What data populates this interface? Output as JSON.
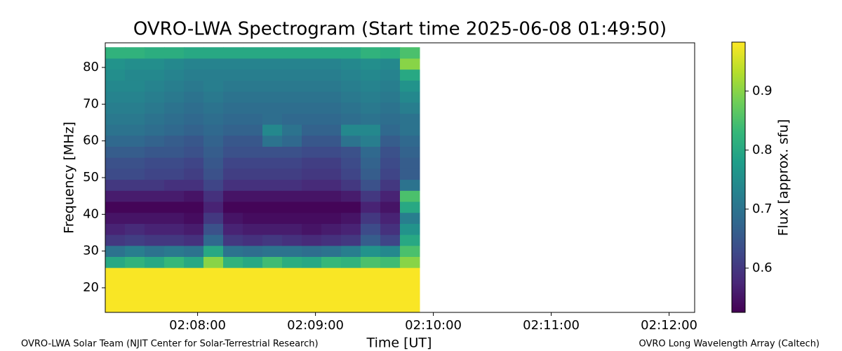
{
  "chart_data": {
    "type": "heatmap",
    "title": "OVRO-LWA Spectrogram (Start time 2025-06-08 01:49:50)",
    "x_label": "Time [UT]",
    "y_label": "Frequency [MHz]",
    "colorbar_label": "Flux [approx. sfu]",
    "footer_left": "OVRO-LWA Solar Team (NJIT Center for Solar-Terrestrial Research)",
    "footer_right": "OVRO Long Wavelength Array (Caltech)",
    "colormap": "viridis",
    "xlim": [
      "02:07:13",
      "02:12:13"
    ],
    "xticks": [
      "02:08:00",
      "02:09:00",
      "02:10:00",
      "02:11:00",
      "02:12:00"
    ],
    "ylim": [
      13.3,
      86.7
    ],
    "yticks": [
      20,
      30,
      40,
      50,
      60,
      70,
      80
    ],
    "clim": [
      0.525,
      0.983
    ],
    "cticks": [
      0.6,
      0.7,
      0.8,
      0.9
    ],
    "x": [
      "02:07:18",
      "02:07:28",
      "02:07:38",
      "02:07:48",
      "02:07:58",
      "02:08:08",
      "02:08:18",
      "02:08:28",
      "02:08:38",
      "02:08:48",
      "02:08:58",
      "02:09:08",
      "02:09:18",
      "02:09:28",
      "02:09:38",
      "02:09:48"
    ],
    "y": [
      15,
      18,
      21,
      24,
      27,
      30,
      33,
      36,
      39,
      42,
      45,
      48,
      51,
      54,
      57,
      60,
      63,
      66,
      69,
      72,
      75,
      78,
      81,
      84
    ],
    "z": [
      [
        0.98,
        0.98,
        0.98,
        0.98,
        0.98,
        0.98,
        0.98,
        0.98,
        0.98,
        0.98,
        0.98,
        0.98,
        0.98,
        0.98,
        0.98,
        0.98
      ],
      [
        0.98,
        0.98,
        0.98,
        0.98,
        0.98,
        0.98,
        0.98,
        0.98,
        0.98,
        0.98,
        0.98,
        0.98,
        0.98,
        0.98,
        0.98,
        0.98
      ],
      [
        0.98,
        0.98,
        0.98,
        0.98,
        0.98,
        0.98,
        0.98,
        0.98,
        0.98,
        0.98,
        0.98,
        0.98,
        0.98,
        0.98,
        0.98,
        0.98
      ],
      [
        0.98,
        0.98,
        0.98,
        0.98,
        0.98,
        0.98,
        0.98,
        0.98,
        0.98,
        0.98,
        0.98,
        0.98,
        0.98,
        0.98,
        0.98,
        0.98
      ],
      [
        0.8,
        0.82,
        0.8,
        0.83,
        0.8,
        0.9,
        0.82,
        0.8,
        0.84,
        0.81,
        0.8,
        0.83,
        0.82,
        0.85,
        0.84,
        0.9
      ],
      [
        0.7,
        0.72,
        0.7,
        0.71,
        0.7,
        0.8,
        0.7,
        0.69,
        0.7,
        0.7,
        0.69,
        0.7,
        0.72,
        0.76,
        0.74,
        0.85
      ],
      [
        0.6,
        0.61,
        0.6,
        0.6,
        0.59,
        0.68,
        0.6,
        0.59,
        0.6,
        0.59,
        0.58,
        0.59,
        0.6,
        0.66,
        0.62,
        0.8
      ],
      [
        0.57,
        0.58,
        0.57,
        0.57,
        0.56,
        0.64,
        0.57,
        0.56,
        0.56,
        0.56,
        0.55,
        0.56,
        0.57,
        0.63,
        0.59,
        0.76
      ],
      [
        0.55,
        0.55,
        0.55,
        0.55,
        0.54,
        0.6,
        0.55,
        0.54,
        0.54,
        0.54,
        0.54,
        0.54,
        0.55,
        0.6,
        0.57,
        0.72
      ],
      [
        0.53,
        0.53,
        0.53,
        0.53,
        0.53,
        0.57,
        0.53,
        0.53,
        0.53,
        0.53,
        0.53,
        0.53,
        0.53,
        0.57,
        0.55,
        0.8
      ],
      [
        0.56,
        0.56,
        0.56,
        0.56,
        0.55,
        0.59,
        0.55,
        0.55,
        0.55,
        0.55,
        0.55,
        0.55,
        0.56,
        0.6,
        0.57,
        0.85
      ],
      [
        0.6,
        0.6,
        0.6,
        0.59,
        0.59,
        0.62,
        0.59,
        0.59,
        0.59,
        0.59,
        0.58,
        0.58,
        0.6,
        0.64,
        0.6,
        0.7
      ],
      [
        0.63,
        0.63,
        0.62,
        0.62,
        0.61,
        0.64,
        0.61,
        0.61,
        0.61,
        0.61,
        0.6,
        0.6,
        0.62,
        0.66,
        0.62,
        0.66
      ],
      [
        0.64,
        0.64,
        0.63,
        0.63,
        0.62,
        0.65,
        0.62,
        0.62,
        0.62,
        0.62,
        0.61,
        0.61,
        0.63,
        0.67,
        0.63,
        0.66
      ],
      [
        0.66,
        0.66,
        0.65,
        0.65,
        0.64,
        0.66,
        0.64,
        0.64,
        0.64,
        0.64,
        0.63,
        0.63,
        0.64,
        0.68,
        0.64,
        0.67
      ],
      [
        0.68,
        0.68,
        0.67,
        0.66,
        0.65,
        0.67,
        0.65,
        0.65,
        0.7,
        0.68,
        0.65,
        0.65,
        0.7,
        0.72,
        0.66,
        0.68
      ],
      [
        0.7,
        0.7,
        0.69,
        0.68,
        0.67,
        0.68,
        0.67,
        0.67,
        0.74,
        0.7,
        0.67,
        0.67,
        0.74,
        0.74,
        0.68,
        0.7
      ],
      [
        0.71,
        0.71,
        0.7,
        0.69,
        0.68,
        0.69,
        0.68,
        0.68,
        0.69,
        0.68,
        0.68,
        0.68,
        0.69,
        0.7,
        0.69,
        0.7
      ],
      [
        0.72,
        0.72,
        0.71,
        0.7,
        0.69,
        0.7,
        0.69,
        0.69,
        0.69,
        0.69,
        0.69,
        0.69,
        0.7,
        0.71,
        0.7,
        0.72
      ],
      [
        0.73,
        0.73,
        0.72,
        0.71,
        0.7,
        0.71,
        0.7,
        0.7,
        0.7,
        0.7,
        0.7,
        0.7,
        0.71,
        0.72,
        0.71,
        0.74
      ],
      [
        0.74,
        0.74,
        0.73,
        0.72,
        0.71,
        0.72,
        0.71,
        0.71,
        0.71,
        0.71,
        0.71,
        0.71,
        0.72,
        0.73,
        0.72,
        0.76
      ],
      [
        0.75,
        0.74,
        0.74,
        0.73,
        0.72,
        0.72,
        0.72,
        0.72,
        0.72,
        0.72,
        0.72,
        0.72,
        0.73,
        0.74,
        0.73,
        0.8
      ],
      [
        0.76,
        0.75,
        0.75,
        0.74,
        0.73,
        0.73,
        0.73,
        0.73,
        0.73,
        0.73,
        0.73,
        0.73,
        0.74,
        0.75,
        0.74,
        0.9
      ],
      [
        0.82,
        0.82,
        0.81,
        0.81,
        0.8,
        0.8,
        0.8,
        0.8,
        0.8,
        0.8,
        0.8,
        0.8,
        0.8,
        0.82,
        0.81,
        0.85
      ]
    ]
  }
}
